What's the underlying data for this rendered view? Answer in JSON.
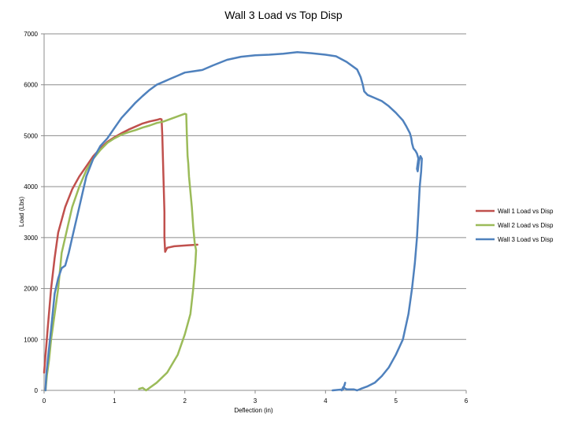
{
  "chart_data": {
    "type": "line",
    "title": "Wall 3 Load vs Top Disp",
    "xlabel": "Deflection (in)",
    "ylabel": "Load (Lbs)",
    "xlim": [
      0,
      6
    ],
    "ylim": [
      0,
      7000
    ],
    "xticks": [
      "0",
      "1",
      "2",
      "3",
      "4",
      "5",
      "6"
    ],
    "yticks": [
      "0",
      "1000",
      "2000",
      "3000",
      "4000",
      "5000",
      "6000",
      "7000"
    ],
    "grid": "horizontal",
    "legend_position": "right",
    "series": [
      {
        "name": "Wall 1 Load vs Disp",
        "color": "#c0504d",
        "points": [
          [
            0,
            350
          ],
          [
            0.05,
            1200
          ],
          [
            0.1,
            2000
          ],
          [
            0.15,
            2600
          ],
          [
            0.2,
            3100
          ],
          [
            0.3,
            3600
          ],
          [
            0.4,
            3950
          ],
          [
            0.5,
            4200
          ],
          [
            0.6,
            4400
          ],
          [
            0.7,
            4600
          ],
          [
            0.8,
            4750
          ],
          [
            0.9,
            4880
          ],
          [
            1.0,
            4970
          ],
          [
            1.1,
            5050
          ],
          [
            1.2,
            5120
          ],
          [
            1.3,
            5180
          ],
          [
            1.4,
            5240
          ],
          [
            1.5,
            5280
          ],
          [
            1.6,
            5310
          ],
          [
            1.65,
            5330
          ],
          [
            1.67,
            5320
          ],
          [
            1.68,
            5000
          ],
          [
            1.69,
            4500
          ],
          [
            1.7,
            4000
          ],
          [
            1.71,
            3500
          ],
          [
            1.71,
            3000
          ],
          [
            1.72,
            2720
          ],
          [
            1.75,
            2800
          ],
          [
            1.85,
            2830
          ],
          [
            1.95,
            2840
          ],
          [
            2.05,
            2850
          ],
          [
            2.12,
            2855
          ],
          [
            2.18,
            2860
          ]
        ]
      },
      {
        "name": "Wall 2 Load vs Disp",
        "color": "#9bbb59",
        "points": [
          [
            1.35,
            30
          ],
          [
            1.4,
            50
          ],
          [
            1.45,
            0
          ],
          [
            1.6,
            150
          ],
          [
            1.75,
            350
          ],
          [
            1.9,
            700
          ],
          [
            2.0,
            1100
          ],
          [
            2.08,
            1500
          ],
          [
            2.12,
            2000
          ],
          [
            2.15,
            2500
          ],
          [
            2.16,
            2750
          ],
          [
            2.14,
            2900
          ],
          [
            2.12,
            3200
          ],
          [
            2.1,
            3600
          ],
          [
            2.08,
            3900
          ],
          [
            2.06,
            4200
          ],
          [
            2.05,
            4450
          ],
          [
            2.04,
            4600
          ],
          [
            2.03,
            5000
          ],
          [
            2.02,
            5420
          ],
          [
            2.0,
            5430
          ],
          [
            1.9,
            5380
          ],
          [
            1.8,
            5330
          ],
          [
            1.7,
            5280
          ],
          [
            1.6,
            5250
          ],
          [
            1.5,
            5200
          ],
          [
            1.4,
            5160
          ],
          [
            1.3,
            5110
          ],
          [
            1.2,
            5070
          ],
          [
            1.1,
            5020
          ],
          [
            1.0,
            4950
          ],
          [
            0.9,
            4860
          ],
          [
            0.8,
            4720
          ],
          [
            0.7,
            4550
          ],
          [
            0.6,
            4320
          ],
          [
            0.5,
            4000
          ],
          [
            0.4,
            3600
          ],
          [
            0.3,
            3000
          ],
          [
            0.25,
            2700
          ],
          [
            0.2,
            2000
          ],
          [
            0.15,
            1500
          ],
          [
            0.1,
            1000
          ],
          [
            0.07,
            600
          ],
          [
            0.04,
            300
          ],
          [
            0.02,
            0
          ]
        ]
      },
      {
        "name": "Wall 3 Load vs Disp",
        "color": "#4f81bd",
        "points": [
          [
            0.02,
            0
          ],
          [
            0.03,
            300
          ],
          [
            0.06,
            700
          ],
          [
            0.1,
            1200
          ],
          [
            0.15,
            1900
          ],
          [
            0.2,
            2200
          ],
          [
            0.25,
            2400
          ],
          [
            0.3,
            2450
          ],
          [
            0.35,
            2700
          ],
          [
            0.4,
            3000
          ],
          [
            0.5,
            3600
          ],
          [
            0.6,
            4200
          ],
          [
            0.7,
            4550
          ],
          [
            0.8,
            4800
          ],
          [
            0.9,
            4950
          ],
          [
            1.0,
            5150
          ],
          [
            1.1,
            5350
          ],
          [
            1.2,
            5500
          ],
          [
            1.3,
            5650
          ],
          [
            1.4,
            5780
          ],
          [
            1.5,
            5900
          ],
          [
            1.6,
            6000
          ],
          [
            1.7,
            6060
          ],
          [
            1.8,
            6120
          ],
          [
            1.9,
            6180
          ],
          [
            2.0,
            6240
          ],
          [
            2.1,
            6260
          ],
          [
            2.25,
            6290
          ],
          [
            2.4,
            6380
          ],
          [
            2.6,
            6490
          ],
          [
            2.8,
            6550
          ],
          [
            3.0,
            6580
          ],
          [
            3.2,
            6590
          ],
          [
            3.4,
            6610
          ],
          [
            3.6,
            6640
          ],
          [
            3.8,
            6620
          ],
          [
            4.0,
            6590
          ],
          [
            4.15,
            6560
          ],
          [
            4.3,
            6450
          ],
          [
            4.45,
            6300
          ],
          [
            4.5,
            6150
          ],
          [
            4.53,
            6000
          ],
          [
            4.55,
            5870
          ],
          [
            4.6,
            5800
          ],
          [
            4.7,
            5740
          ],
          [
            4.8,
            5680
          ],
          [
            4.9,
            5580
          ],
          [
            5.0,
            5450
          ],
          [
            5.1,
            5300
          ],
          [
            5.15,
            5180
          ],
          [
            5.2,
            5050
          ],
          [
            5.22,
            4950
          ],
          [
            5.23,
            4850
          ],
          [
            5.25,
            4750
          ],
          [
            5.28,
            4700
          ],
          [
            5.3,
            4650
          ],
          [
            5.32,
            4550
          ],
          [
            5.3,
            4350
          ],
          [
            5.31,
            4300
          ],
          [
            5.33,
            4500
          ],
          [
            5.35,
            4600
          ],
          [
            5.37,
            4550
          ],
          [
            5.36,
            4300
          ],
          [
            5.34,
            4000
          ],
          [
            5.32,
            3500
          ],
          [
            5.3,
            3000
          ],
          [
            5.27,
            2500
          ],
          [
            5.23,
            2000
          ],
          [
            5.18,
            1500
          ],
          [
            5.1,
            1000
          ],
          [
            5.0,
            700
          ],
          [
            4.9,
            450
          ],
          [
            4.8,
            280
          ],
          [
            4.7,
            150
          ],
          [
            4.6,
            80
          ],
          [
            4.5,
            30
          ],
          [
            4.45,
            0
          ],
          [
            4.4,
            20
          ],
          [
            4.3,
            20
          ],
          [
            4.25,
            60
          ],
          [
            4.23,
            0
          ],
          [
            4.27,
            100
          ],
          [
            4.28,
            150
          ],
          [
            4.25,
            20
          ],
          [
            4.1,
            0
          ]
        ]
      }
    ]
  }
}
